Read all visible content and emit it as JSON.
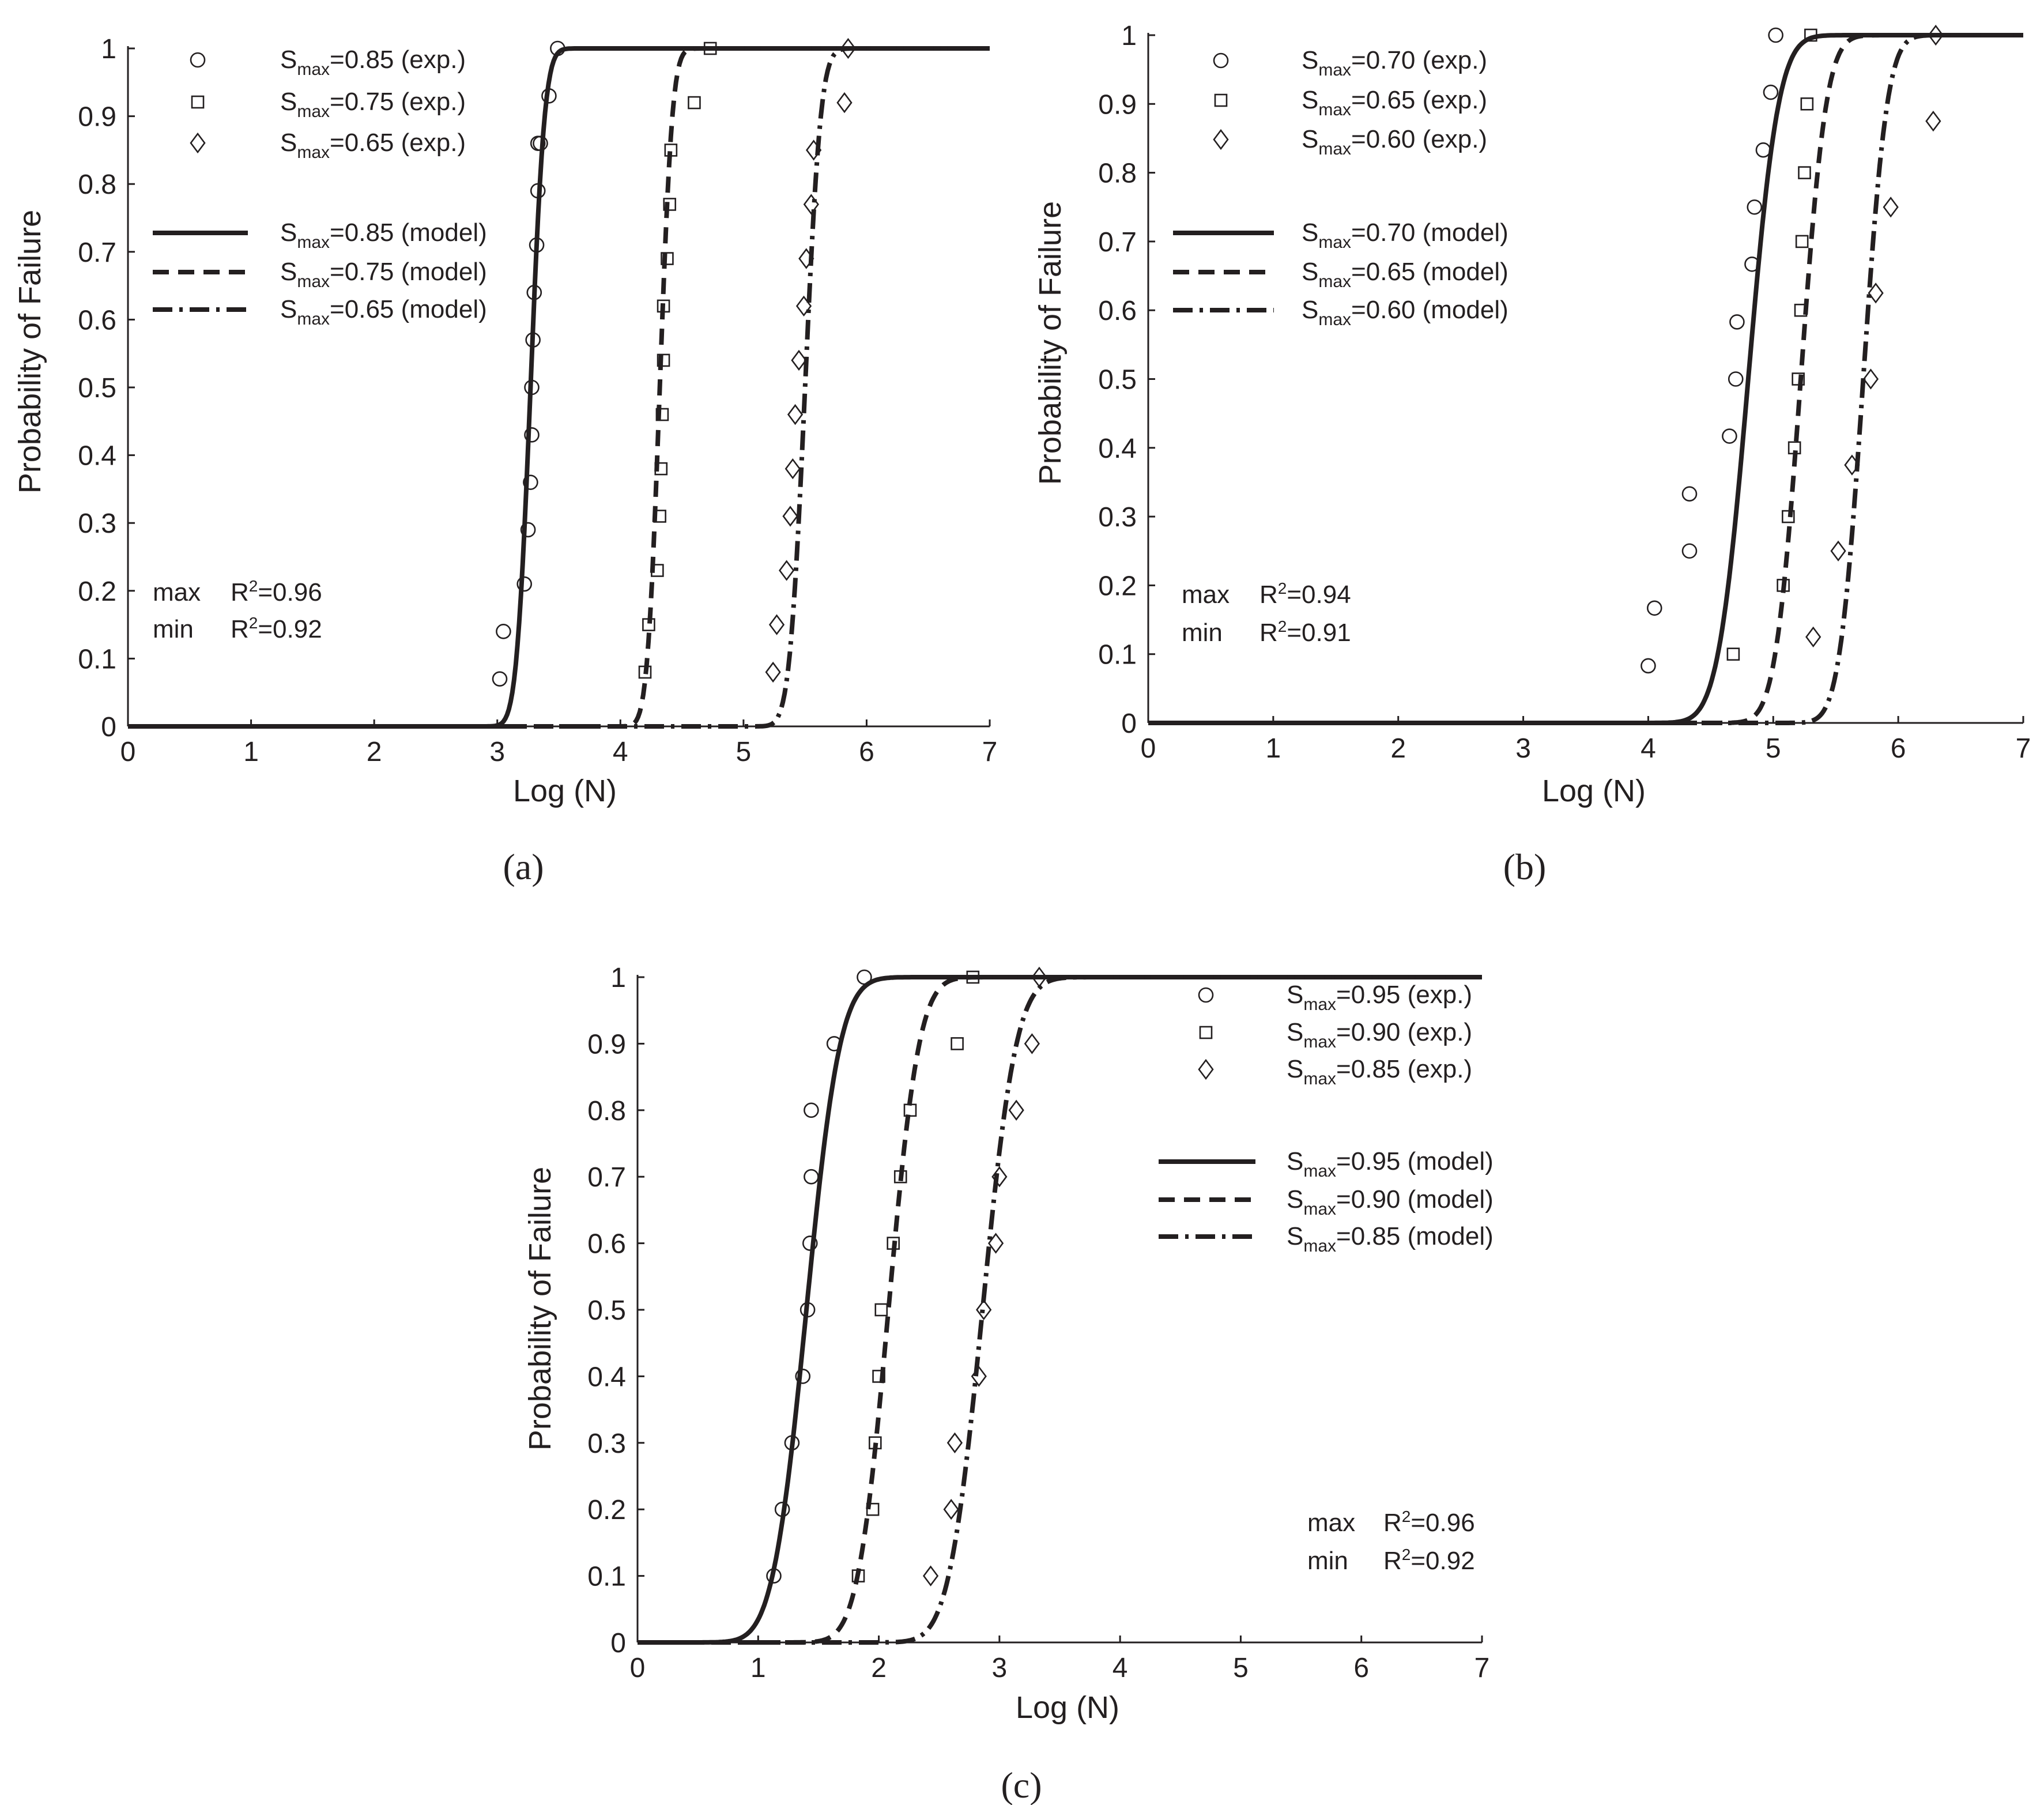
{
  "chart_data": [
    {
      "type": "scatter",
      "panel_label": "(a)",
      "title": "",
      "xlabel": "Log (N)",
      "ylabel": "Probability of Failure",
      "xlim": [
        0,
        7
      ],
      "ylim": [
        0,
        1
      ],
      "x_ticks": [
        "0",
        "1",
        "2",
        "3",
        "4",
        "5",
        "6",
        "7"
      ],
      "y_ticks": [
        "0",
        "0.1",
        "0.2",
        "0.3",
        "0.4",
        "0.5",
        "0.6",
        "0.7",
        "0.8",
        "0.9",
        "1"
      ],
      "grid": false,
      "legend_placement": "top-left",
      "exp_series": [
        {
          "name_main": "S",
          "name_sub": "max",
          "name_rest": "=0.85 (exp.)",
          "marker": "circle",
          "x": [
            3.02,
            3.05,
            3.22,
            3.25,
            3.27,
            3.28,
            3.28,
            3.29,
            3.3,
            3.32,
            3.33,
            3.33,
            3.35,
            3.42,
            3.49
          ],
          "y": [
            0.07,
            0.14,
            0.21,
            0.29,
            0.36,
            0.43,
            0.5,
            0.57,
            0.64,
            0.71,
            0.79,
            0.86,
            0.86,
            0.93,
            1.0
          ]
        },
        {
          "name_main": "S",
          "name_sub": "max",
          "name_rest": "=0.75 (exp.)",
          "marker": "square",
          "x": [
            4.2,
            4.23,
            4.3,
            4.32,
            4.33,
            4.34,
            4.35,
            4.35,
            4.38,
            4.4,
            4.41,
            4.6,
            4.73
          ],
          "y": [
            0.08,
            0.15,
            0.23,
            0.31,
            0.38,
            0.46,
            0.54,
            0.62,
            0.69,
            0.77,
            0.85,
            0.92,
            1.0
          ]
        },
        {
          "name_main": "S",
          "name_sub": "max",
          "name_rest": "=0.65 (exp.)",
          "marker": "diamond",
          "x": [
            5.24,
            5.27,
            5.35,
            5.38,
            5.4,
            5.42,
            5.45,
            5.49,
            5.51,
            5.55,
            5.57,
            5.82,
            5.85
          ],
          "y": [
            0.08,
            0.15,
            0.23,
            0.31,
            0.38,
            0.46,
            0.54,
            0.62,
            0.69,
            0.77,
            0.85,
            0.92,
            1.0
          ]
        }
      ],
      "model_series": [
        {
          "name_main": "S",
          "name_sub": "max",
          "name_rest": "=0.85 (model)",
          "style": "solid",
          "mu": 3.27,
          "sigma": 0.09
        },
        {
          "name_main": "S",
          "name_sub": "max",
          "name_rest": "=0.75 (model)",
          "style": "dashed",
          "mu": 4.32,
          "sigma": 0.08
        },
        {
          "name_main": "S",
          "name_sub": "max",
          "name_rest": "=0.65 (model)",
          "style": "dashdot",
          "mu": 5.5,
          "sigma": 0.1
        }
      ],
      "stats": [
        {
          "label": "max",
          "r_base": "R",
          "r_sup": "2",
          "r_value": "=0.96"
        },
        {
          "label": "min",
          "r_base": "R",
          "r_sup": "2",
          "r_value": "=0.92"
        }
      ]
    },
    {
      "type": "scatter",
      "panel_label": "(b)",
      "title": "",
      "xlabel": "Log (N)",
      "ylabel": "Probability of Failure",
      "xlim": [
        0,
        7
      ],
      "ylim": [
        0,
        1
      ],
      "x_ticks": [
        "0",
        "1",
        "2",
        "3",
        "4",
        "5",
        "6",
        "7"
      ],
      "y_ticks": [
        "0",
        "0.1",
        "0.2",
        "0.3",
        "0.4",
        "0.5",
        "0.6",
        "0.7",
        "0.8",
        "0.9",
        "1"
      ],
      "grid": false,
      "legend_placement": "top-left",
      "exp_series": [
        {
          "name_main": "S",
          "name_sub": "max",
          "name_rest": "=0.70 (exp.)",
          "marker": "circle",
          "x": [
            4.0,
            4.05,
            4.33,
            4.33,
            4.65,
            4.7,
            4.71,
            4.83,
            4.85,
            4.92,
            4.98,
            5.02
          ],
          "y": [
            0.083,
            0.167,
            0.25,
            0.333,
            0.417,
            0.5,
            0.583,
            0.667,
            0.75,
            0.833,
            0.917,
            1.0
          ]
        },
        {
          "name_main": "S",
          "name_sub": "max",
          "name_rest": "=0.65 (exp.)",
          "marker": "square",
          "x": [
            4.68,
            5.08,
            5.12,
            5.17,
            5.2,
            5.22,
            5.23,
            5.25,
            5.27,
            5.3
          ],
          "y": [
            0.1,
            0.2,
            0.3,
            0.4,
            0.5,
            0.6,
            0.7,
            0.8,
            0.9,
            1.0
          ]
        },
        {
          "name_main": "S",
          "name_sub": "max",
          "name_rest": "=0.60 (exp.)",
          "marker": "diamond",
          "x": [
            5.32,
            5.52,
            5.63,
            5.78,
            5.82,
            5.94,
            6.28,
            6.3
          ],
          "y": [
            0.125,
            0.25,
            0.375,
            0.5,
            0.625,
            0.75,
            0.875,
            1.0
          ]
        }
      ],
      "model_series": [
        {
          "name_main": "S",
          "name_sub": "max",
          "name_rest": "=0.70 (model)",
          "style": "solid",
          "mu": 4.8,
          "sigma": 0.19
        },
        {
          "name_main": "S",
          "name_sub": "max",
          "name_rest": "=0.65 (model)",
          "style": "dashed",
          "mu": 5.22,
          "sigma": 0.16
        },
        {
          "name_main": "S",
          "name_sub": "max",
          "name_rest": "=0.60 (model)",
          "style": "dashdot",
          "mu": 5.72,
          "sigma": 0.15
        }
      ],
      "stats": [
        {
          "label": "max",
          "r_base": "R",
          "r_sup": "2",
          "r_value": "=0.94"
        },
        {
          "label": "min",
          "r_base": "R",
          "r_sup": "2",
          "r_value": "=0.91"
        }
      ]
    },
    {
      "type": "scatter",
      "panel_label": "(c)",
      "title": "",
      "xlabel": "Log (N)",
      "ylabel": "Probability of Failure",
      "xlim": [
        0,
        7
      ],
      "ylim": [
        0,
        1
      ],
      "x_ticks": [
        "0",
        "1",
        "2",
        "3",
        "4",
        "5",
        "6",
        "7"
      ],
      "y_ticks": [
        "0",
        "0.1",
        "0.2",
        "0.3",
        "0.4",
        "0.5",
        "0.6",
        "0.7",
        "0.8",
        "0.9",
        "1"
      ],
      "grid": false,
      "legend_placement": "top-right",
      "exp_series": [
        {
          "name_main": "S",
          "name_sub": "max",
          "name_rest": "=0.95 (exp.)",
          "marker": "circle",
          "x": [
            1.13,
            1.2,
            1.28,
            1.37,
            1.41,
            1.43,
            1.44,
            1.44,
            1.63,
            1.88
          ],
          "y": [
            0.1,
            0.2,
            0.3,
            0.4,
            0.5,
            0.6,
            0.7,
            0.8,
            0.9,
            1.0
          ]
        },
        {
          "name_main": "S",
          "name_sub": "max",
          "name_rest": "=0.90 (exp.)",
          "marker": "square",
          "x": [
            1.83,
            1.95,
            1.97,
            2.0,
            2.02,
            2.12,
            2.18,
            2.26,
            2.65,
            2.78
          ],
          "y": [
            0.1,
            0.2,
            0.3,
            0.4,
            0.5,
            0.6,
            0.7,
            0.8,
            0.9,
            1.0
          ]
        },
        {
          "name_main": "S",
          "name_sub": "max",
          "name_rest": "=0.85 (exp.)",
          "marker": "diamond",
          "x": [
            2.43,
            2.6,
            2.63,
            2.83,
            2.87,
            2.97,
            3.0,
            3.14,
            3.27,
            3.33
          ],
          "y": [
            0.1,
            0.2,
            0.3,
            0.4,
            0.5,
            0.6,
            0.7,
            0.8,
            0.9,
            1.0
          ]
        }
      ],
      "model_series": [
        {
          "name_main": "S",
          "name_sub": "max",
          "name_rest": "=0.95 (model)",
          "style": "solid",
          "mu": 1.4,
          "sigma": 0.22
        },
        {
          "name_main": "S",
          "name_sub": "max",
          "name_rest": "=0.90 (model)",
          "style": "dashed",
          "mu": 2.08,
          "sigma": 0.2
        },
        {
          "name_main": "S",
          "name_sub": "max",
          "name_rest": "=0.85 (model)",
          "style": "dashdot",
          "mu": 2.86,
          "sigma": 0.22
        }
      ],
      "stats": [
        {
          "label": "max",
          "r_base": "R",
          "r_sup": "2",
          "r_value": "=0.96"
        },
        {
          "label": "min",
          "r_base": "R",
          "r_sup": "2",
          "r_value": "=0.92"
        }
      ]
    }
  ]
}
